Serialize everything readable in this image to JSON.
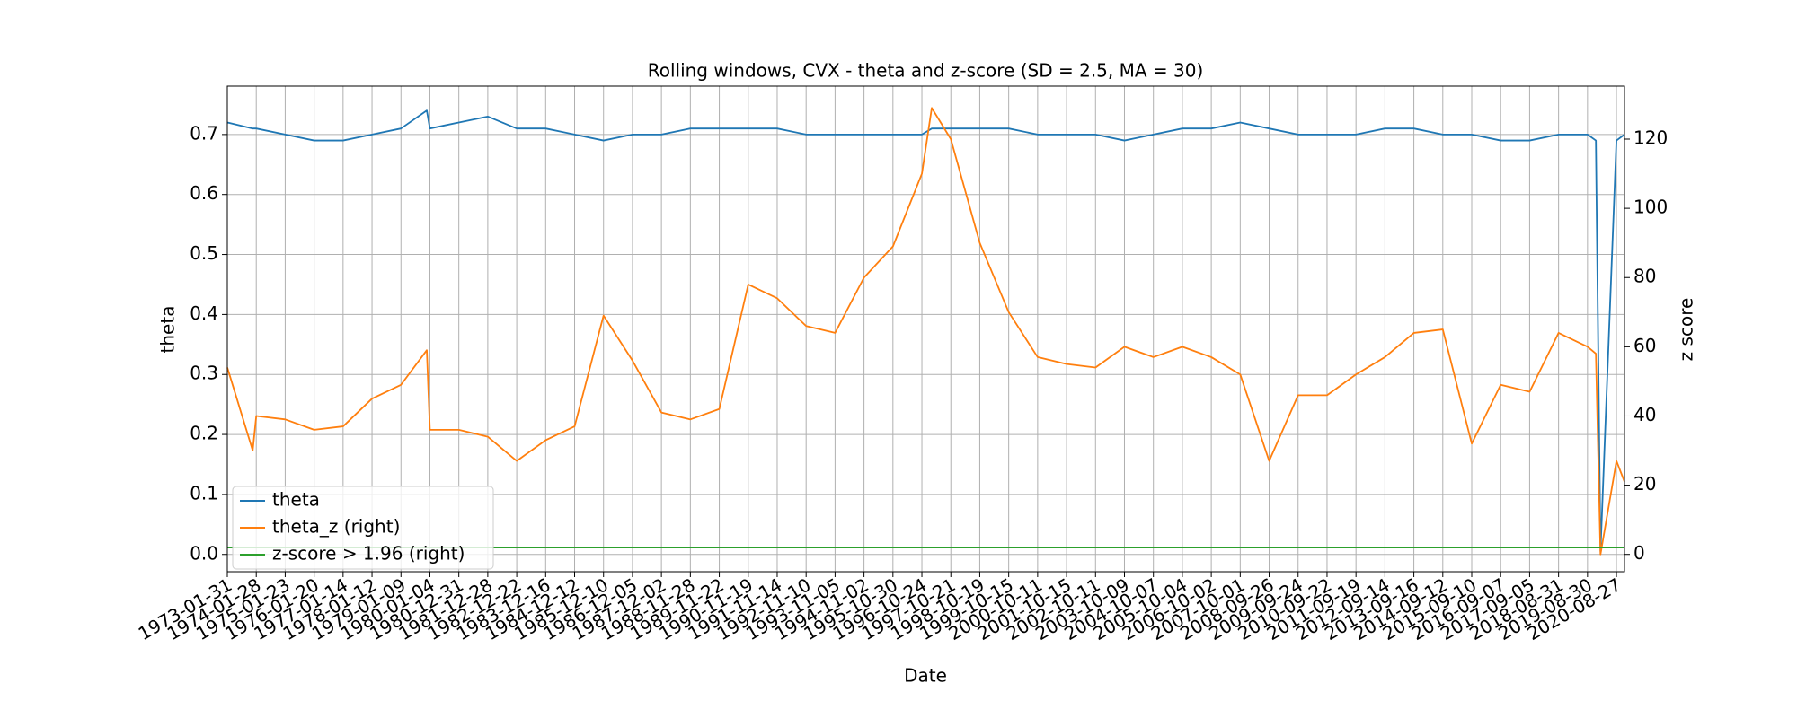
{
  "chart_data": {
    "type": "line",
    "title": "Rolling windows, CVX - theta and z-score (SD = 2.5, MA = 30)",
    "x_label": "Date",
    "y_label": "theta",
    "y2_label": "z score",
    "grid": true,
    "legend": "lower left",
    "x": [
      0,
      221,
      252,
      504,
      756,
      1008,
      1260,
      1512,
      1737,
      1764,
      2016,
      2268,
      2520,
      2772,
      3024,
      3276,
      3528,
      3780,
      4032,
      4284,
      4536,
      4788,
      5040,
      5292,
      5544,
      5796,
      6048,
      6134,
      6300,
      6552,
      6804,
      7056,
      7308,
      7560,
      7812,
      8064,
      8316,
      8568,
      8820,
      9072,
      9324,
      9576,
      9828,
      10080,
      10332,
      10584,
      10836,
      11088,
      11340,
      11592,
      11844,
      11917,
      11957,
      12096,
      12166
    ],
    "series": [
      {
        "name": "theta",
        "color": "#1f77b4",
        "values": [
          0.72,
          0.71,
          0.71,
          0.7,
          0.69,
          0.69,
          0.7,
          0.71,
          0.74,
          0.71,
          0.72,
          0.73,
          0.71,
          0.71,
          0.7,
          0.69,
          0.7,
          0.7,
          0.71,
          0.71,
          0.71,
          0.71,
          0.7,
          0.7,
          0.7,
          0.7,
          0.7,
          0.71,
          0.71,
          0.71,
          0.71,
          0.7,
          0.7,
          0.7,
          0.69,
          0.7,
          0.71,
          0.71,
          0.72,
          0.71,
          0.7,
          0.7,
          0.7,
          0.71,
          0.71,
          0.7,
          0.7,
          0.69,
          0.69,
          0.7,
          0.7,
          0.69,
          0.005,
          0.69,
          0.7
        ]
      },
      {
        "name": "theta_z (right)",
        "color": "#ff7f0e",
        "axis": "y2",
        "values": [
          54,
          30,
          40,
          39,
          36,
          37,
          45,
          49,
          59,
          36,
          36,
          34,
          27,
          33,
          37,
          69,
          56,
          41,
          39,
          42,
          78,
          74,
          66,
          64,
          80,
          89,
          110,
          129,
          120,
          90,
          70,
          57,
          55,
          54,
          60,
          57,
          60,
          57,
          52,
          27,
          46,
          46,
          52,
          57,
          64,
          65,
          32,
          49,
          47,
          64,
          60,
          58,
          0,
          27,
          21
        ]
      },
      {
        "name": "z-score > 1.96 (right)",
        "color": "#2ca02c",
        "axis": "y2",
        "values": [
          1.96,
          1.96,
          1.96,
          1.96,
          1.96,
          1.96,
          1.96,
          1.96,
          1.96,
          1.96,
          1.96,
          1.96,
          1.96,
          1.96,
          1.96,
          1.96,
          1.96,
          1.96,
          1.96,
          1.96,
          1.96,
          1.96,
          1.96,
          1.96,
          1.96,
          1.96,
          1.96,
          1.96,
          1.96,
          1.96,
          1.96,
          1.96,
          1.96,
          1.96,
          1.96,
          1.96,
          1.96,
          1.96,
          1.96,
          1.96,
          1.96,
          1.96,
          1.96,
          1.96,
          1.96,
          1.96,
          1.96,
          1.96,
          1.96,
          1.96,
          1.96,
          1.96,
          1.96,
          1.96,
          1.96
        ]
      }
    ],
    "xlim": [
      0,
      12166
    ],
    "xticks": [
      {
        "value": 0,
        "label": "1973-01-31"
      },
      {
        "value": 252,
        "label": "1974-01-28"
      },
      {
        "value": 504,
        "label": "1975-01-23"
      },
      {
        "value": 756,
        "label": "1976-01-20"
      },
      {
        "value": 1008,
        "label": "1977-01-14"
      },
      {
        "value": 1260,
        "label": "1978-01-12"
      },
      {
        "value": 1512,
        "label": "1979-01-09"
      },
      {
        "value": 1764,
        "label": "1980-01-04"
      },
      {
        "value": 2016,
        "label": "1980-12-31"
      },
      {
        "value": 2268,
        "label": "1981-12-28"
      },
      {
        "value": 2520,
        "label": "1982-12-22"
      },
      {
        "value": 2772,
        "label": "1983-12-16"
      },
      {
        "value": 3024,
        "label": "1984-12-12"
      },
      {
        "value": 3276,
        "label": "1985-12-10"
      },
      {
        "value": 3528,
        "label": "1986-12-05"
      },
      {
        "value": 3780,
        "label": "1987-12-02"
      },
      {
        "value": 4032,
        "label": "1988-11-28"
      },
      {
        "value": 4284,
        "label": "1989-11-22"
      },
      {
        "value": 4536,
        "label": "1990-11-19"
      },
      {
        "value": 4788,
        "label": "1991-11-14"
      },
      {
        "value": 5040,
        "label": "1992-11-10"
      },
      {
        "value": 5292,
        "label": "1993-11-05"
      },
      {
        "value": 5544,
        "label": "1994-11-02"
      },
      {
        "value": 5796,
        "label": "1995-10-30"
      },
      {
        "value": 6048,
        "label": "1996-10-24"
      },
      {
        "value": 6300,
        "label": "1997-10-21"
      },
      {
        "value": 6552,
        "label": "1998-10-19"
      },
      {
        "value": 6804,
        "label": "1999-10-15"
      },
      {
        "value": 7056,
        "label": "2000-10-11"
      },
      {
        "value": 7308,
        "label": "2001-10-15"
      },
      {
        "value": 7560,
        "label": "2002-10-11"
      },
      {
        "value": 7812,
        "label": "2003-10-09"
      },
      {
        "value": 8064,
        "label": "2004-10-07"
      },
      {
        "value": 8316,
        "label": "2005-10-04"
      },
      {
        "value": 8568,
        "label": "2006-10-02"
      },
      {
        "value": 8820,
        "label": "2007-10-01"
      },
      {
        "value": 9072,
        "label": "2008-09-26"
      },
      {
        "value": 9324,
        "label": "2009-09-24"
      },
      {
        "value": 9576,
        "label": "2010-09-22"
      },
      {
        "value": 9828,
        "label": "2011-09-19"
      },
      {
        "value": 10080,
        "label": "2012-09-14"
      },
      {
        "value": 10332,
        "label": "2013-09-16"
      },
      {
        "value": 10584,
        "label": "2014-09-12"
      },
      {
        "value": 10836,
        "label": "2015-09-10"
      },
      {
        "value": 11088,
        "label": "2016-09-07"
      },
      {
        "value": 11340,
        "label": "2017-09-05"
      },
      {
        "value": 11592,
        "label": "2018-08-31"
      },
      {
        "value": 11844,
        "label": "2019-08-30"
      },
      {
        "value": 12096,
        "label": "2020-08-27"
      }
    ],
    "ylim": [
      -0.0288,
      0.7806
    ],
    "yticks": [
      {
        "value": 0,
        "label": "0.0"
      },
      0.1,
      0.2,
      0.3,
      0.4,
      0.5,
      0.6,
      0.7
    ],
    "y2lim": [
      -5,
      135.3
    ],
    "y2ticks": [
      0,
      20,
      40,
      60,
      80,
      100,
      120
    ]
  }
}
